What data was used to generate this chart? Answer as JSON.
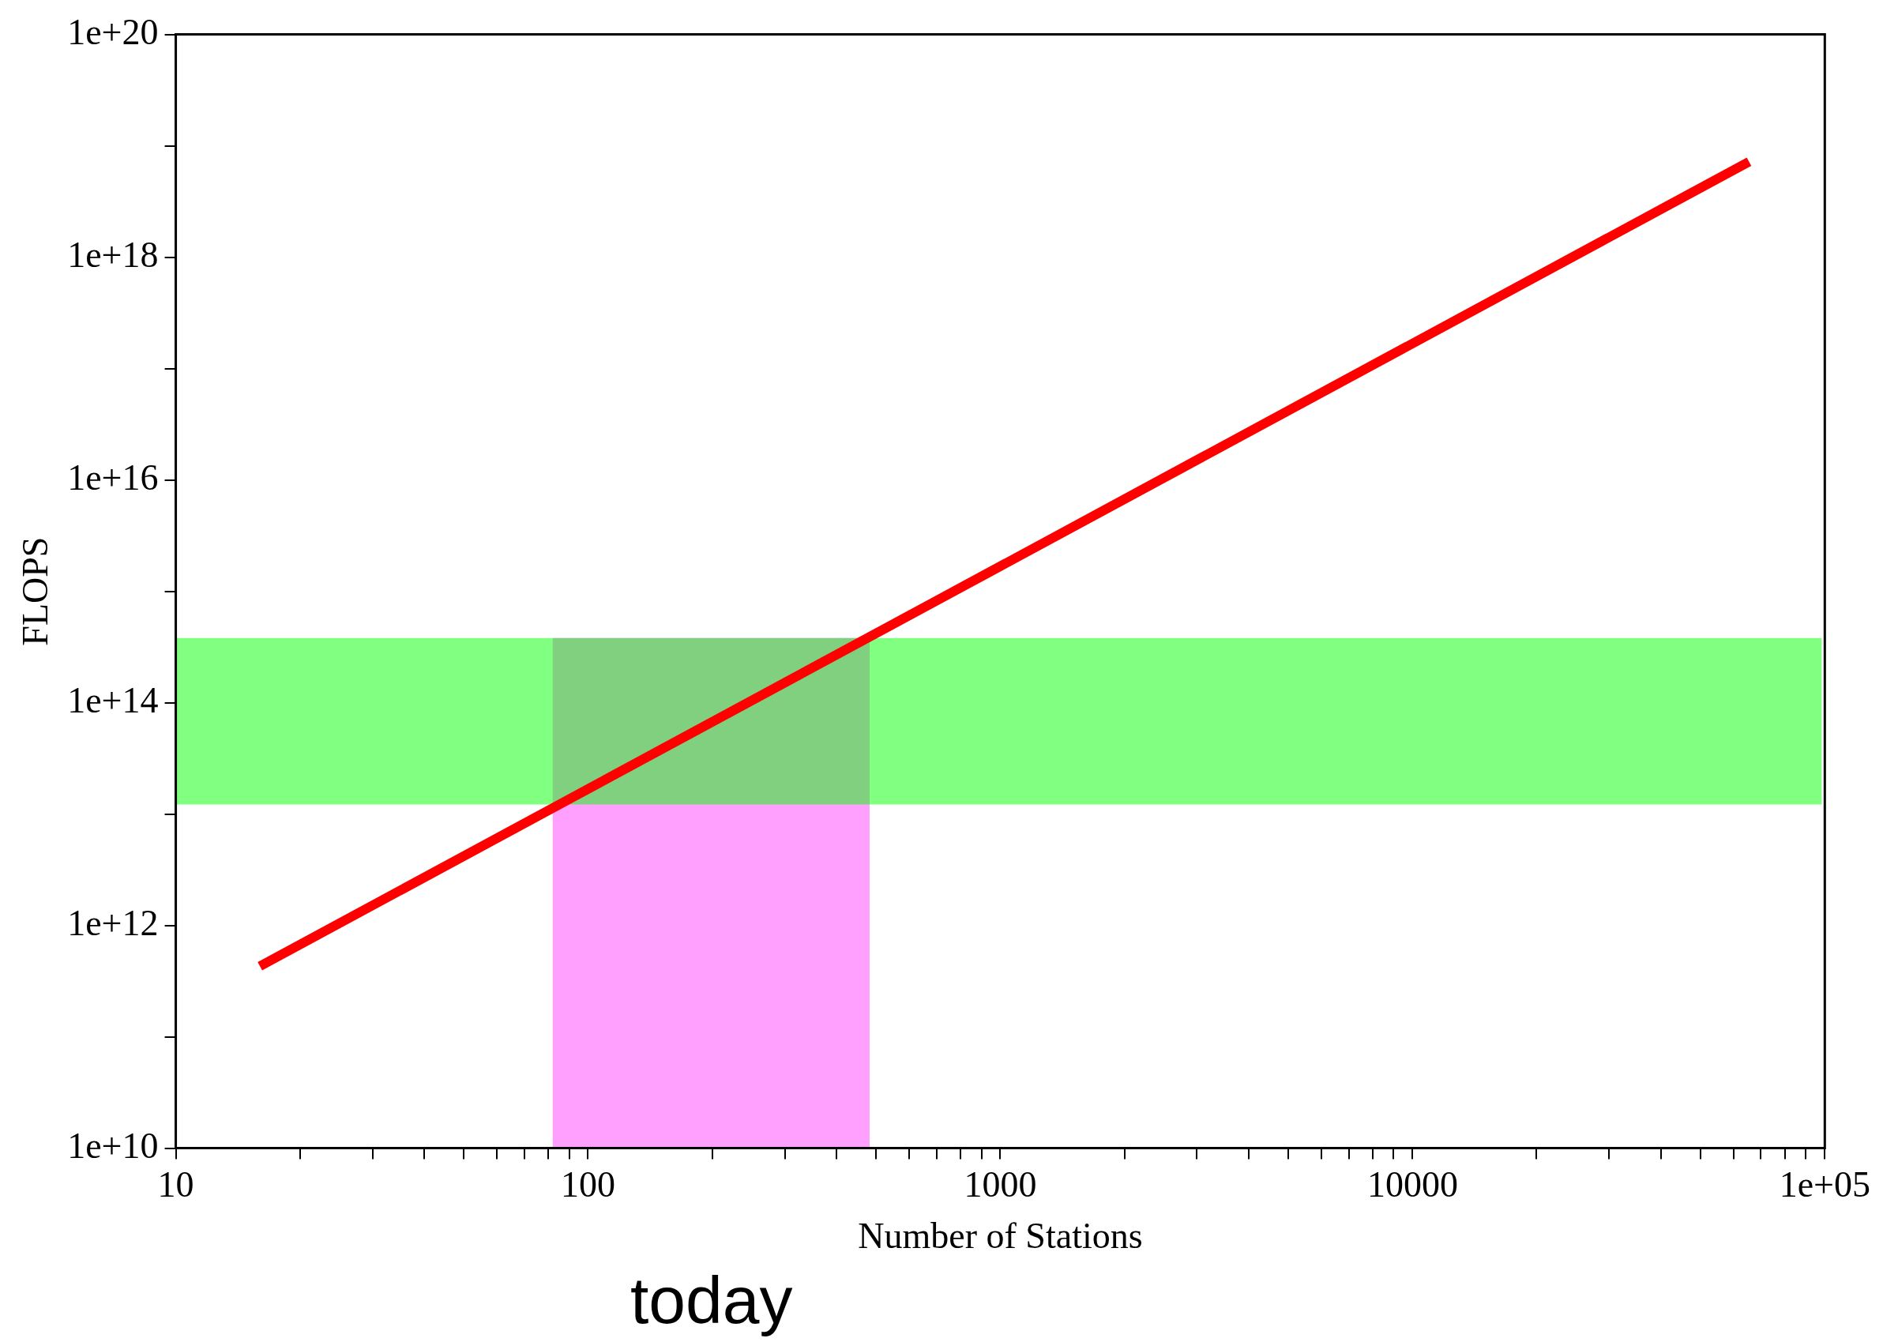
{
  "chart_data": {
    "type": "line",
    "xlabel": "Number of Stations",
    "ylabel": "FLOPS",
    "log": "xy",
    "grid": false,
    "legend": false,
    "xlim": [
      10,
      100000
    ],
    "ylim": [
      10000000000,
      100000000000000000000
    ],
    "xticks": [
      10,
      {
        "value": 20,
        "label": null
      },
      {
        "value": 30,
        "label": null
      },
      {
        "value": 40,
        "label": null
      },
      {
        "value": 50,
        "label": null
      },
      {
        "value": 60,
        "label": null
      },
      {
        "value": 70,
        "label": null
      },
      {
        "value": 80,
        "label": null
      },
      {
        "value": 90,
        "label": null
      },
      100,
      {
        "value": 200,
        "label": null
      },
      {
        "value": 300,
        "label": null
      },
      {
        "value": 400,
        "label": null
      },
      {
        "value": 500,
        "label": null
      },
      {
        "value": 600,
        "label": null
      },
      {
        "value": 700,
        "label": null
      },
      {
        "value": 800,
        "label": null
      },
      {
        "value": 900,
        "label": null
      },
      1000,
      {
        "value": 2000,
        "label": null
      },
      {
        "value": 3000,
        "label": null
      },
      {
        "value": 4000,
        "label": null
      },
      {
        "value": 5000,
        "label": null
      },
      {
        "value": 6000,
        "label": null
      },
      {
        "value": 7000,
        "label": null
      },
      {
        "value": 8000,
        "label": null
      },
      {
        "value": 9000,
        "label": null
      },
      10000,
      {
        "value": 20000,
        "label": null
      },
      {
        "value": 30000,
        "label": null
      },
      {
        "value": 40000,
        "label": null
      },
      {
        "value": 50000,
        "label": null
      },
      {
        "value": 60000,
        "label": null
      },
      {
        "value": 70000,
        "label": null
      },
      {
        "value": 80000,
        "label": null
      },
      {
        "value": 90000,
        "label": null
      },
      {
        "value": 100000,
        "label": "1e+05"
      }
    ],
    "yticks": [
      {
        "value": 10000000000,
        "label": "1e+10"
      },
      {
        "value": 100000000000,
        "label": null
      },
      {
        "value": 1000000000000,
        "label": "1e+12"
      },
      {
        "value": 10000000000000,
        "label": null
      },
      {
        "value": 100000000000000,
        "label": "1e+14"
      },
      {
        "value": 1000000000000000,
        "label": null
      },
      {
        "value": 10000000000000000,
        "label": "1e+16"
      },
      {
        "value": 100000000000000000,
        "label": null
      },
      {
        "value": 1000000000000000000,
        "label": "1e+18"
      },
      {
        "value": 10000000000000000000,
        "label": null
      },
      {
        "value": 100000000000000000000,
        "label": "1e+20"
      }
    ],
    "series": [
      {
        "type": "area",
        "color": "#ffa0ff",
        "x": [
          82,
          482
        ],
        "values": [
          380000000000000,
          380000000000000
        ]
      },
      {
        "type": "line",
        "color": "#ff0000",
        "x": [
          16,
          65500
        ],
        "values": [
          430000000000,
          7200000000000000000
        ]
      }
    ],
    "bands": [
      {
        "axis": "y",
        "from": 12200000000000,
        "to": 380000000000000,
        "color": "#80ff80"
      }
    ],
    "annotations": [
      "today"
    ]
  }
}
